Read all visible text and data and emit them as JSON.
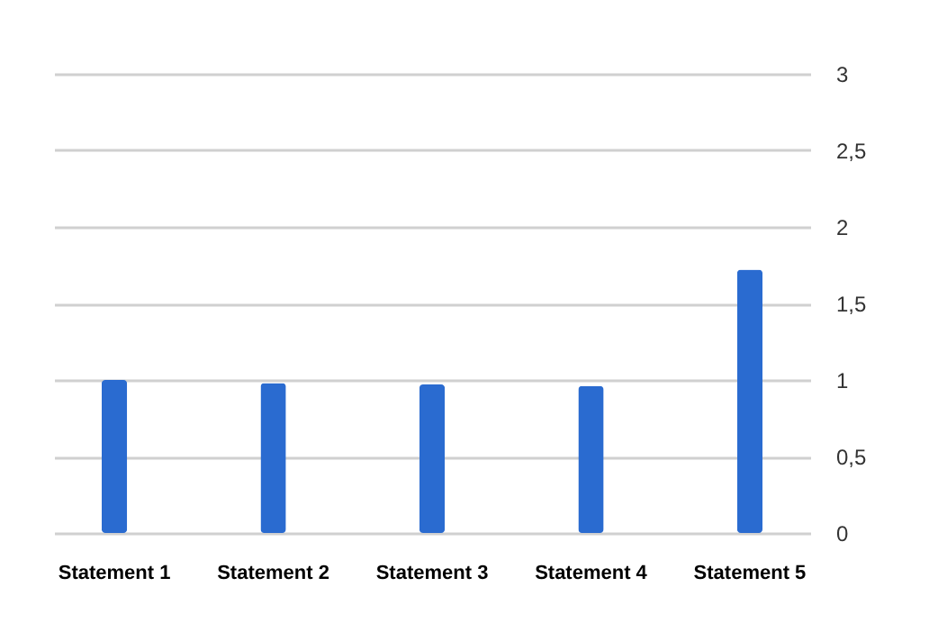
{
  "chart_data": {
    "type": "bar",
    "categories": [
      "Statement 1",
      "Statement 2",
      "Statement 3",
      "Statement 4",
      "Statement 5"
    ],
    "values": [
      1,
      0.98,
      0.97,
      0.96,
      1.72
    ],
    "color": "#2a6bd0",
    "ylim": [
      0,
      3
    ],
    "yticks": [
      0,
      {
        "value": 0.5,
        "label": "0,5"
      },
      1,
      {
        "value": 1.5,
        "label": "1,5"
      },
      2,
      {
        "value": 2.5,
        "label": "2,5"
      },
      3
    ],
    "grid": "y"
  }
}
